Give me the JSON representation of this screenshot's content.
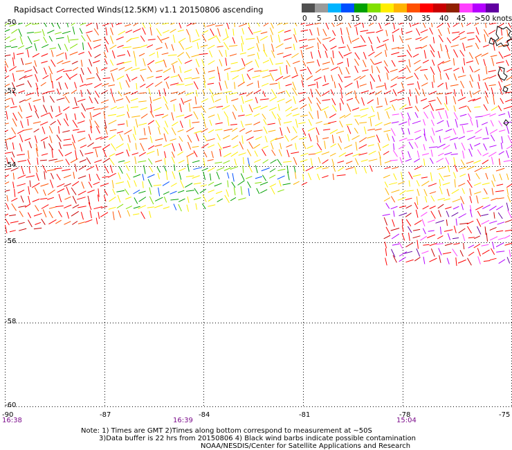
{
  "title": "Rapidsact Corrected Winds(12.5KM) v1.1 20150806 ascending",
  "legend": {
    "labels": [
      "0",
      "5",
      "10",
      "15",
      "20",
      "25",
      "30",
      "35",
      "40",
      "45",
      ">50 knots"
    ],
    "colors": [
      "#505050",
      "#9a9a9a",
      "#00b4ff",
      "#0050ff",
      "#00a000",
      "#80e000",
      "#ffee00",
      "#ffb400",
      "#ff5000",
      "#ff0000",
      "#c80000",
      "#902000",
      "#ff40ff",
      "#b400ff",
      "#6000a0"
    ]
  },
  "map": {
    "lat_labels": [
      "-50",
      "-52",
      "-54",
      "-56",
      "-58",
      "-60"
    ],
    "lon_labels": [
      "-90",
      "-87",
      "-84",
      "-81",
      "-78",
      "-75"
    ],
    "time_labels": [
      "16:38",
      "16:39",
      "15:04"
    ]
  },
  "notes": {
    "line1": "Note: 1) Times are GMT 2)Times along bottom correspond to measurement at ~50S",
    "line2": "3)Data buffer is 22 hrs from 20150806 4) Black wind barbs indicate possible contamination",
    "line3": "NOAA/NESDIS/Center for Satellite Applications and Research"
  }
}
